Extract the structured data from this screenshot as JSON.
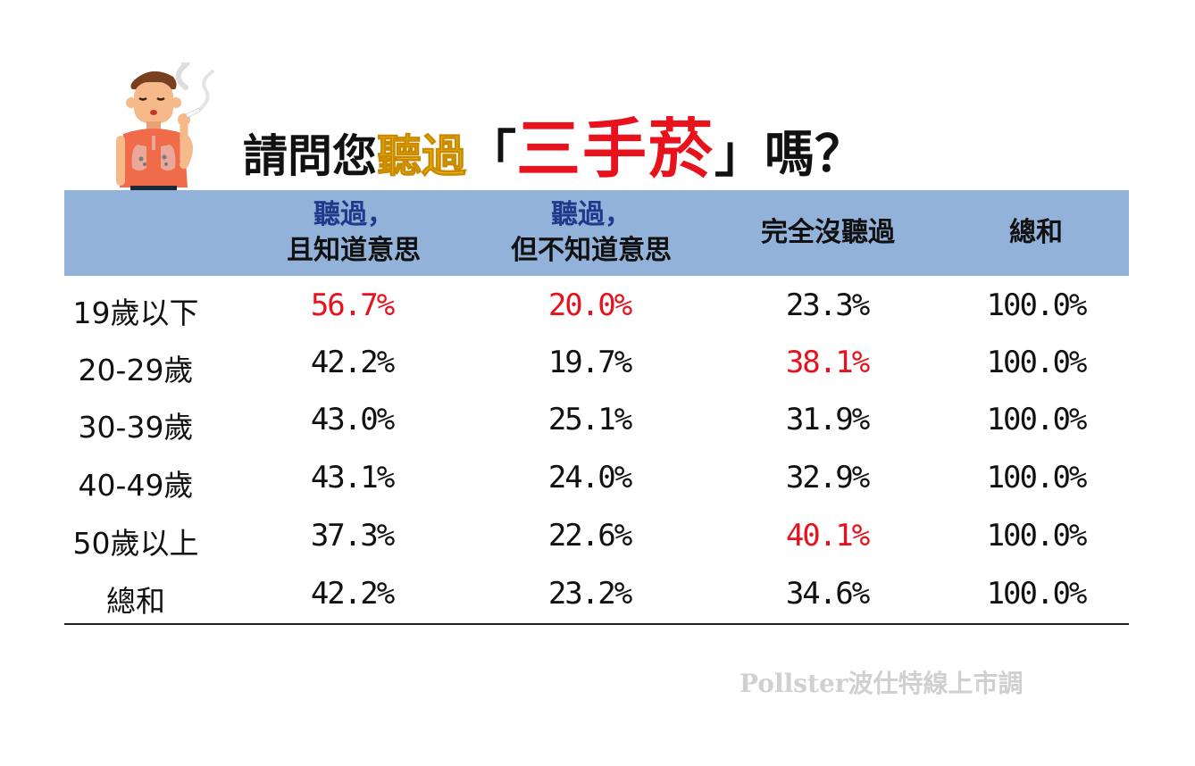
{
  "title": {
    "part1": "請問您",
    "part2": "聽過",
    "part3": "「",
    "part4": "三手菸",
    "part5": "」嗎？"
  },
  "colors": {
    "header_bg": "#93b2d9",
    "highlight_red": "#e8121d",
    "header_blue": "#1f3a8c",
    "title_gold": "#f2b705"
  },
  "chart_data": {
    "type": "table",
    "columns": [
      {
        "line1": "聽過，",
        "line2": "且知道意思"
      },
      {
        "line1": "聽過，",
        "line2": "但不知道意思"
      },
      {
        "line1": "完全沒聽過",
        "line2": ""
      },
      {
        "line1": "總和",
        "line2": ""
      }
    ],
    "rows": [
      {
        "label": "19歲以下",
        "values": [
          "56.7%",
          "20.0%",
          "23.3%",
          "100.0%"
        ],
        "highlight": [
          true,
          true,
          false,
          false
        ]
      },
      {
        "label": "20-29歲",
        "values": [
          "42.2%",
          "19.7%",
          "38.1%",
          "100.0%"
        ],
        "highlight": [
          false,
          false,
          true,
          false
        ]
      },
      {
        "label": "30-39歲",
        "values": [
          "43.0%",
          "25.1%",
          "31.9%",
          "100.0%"
        ],
        "highlight": [
          false,
          false,
          false,
          false
        ]
      },
      {
        "label": "40-49歲",
        "values": [
          "43.1%",
          "24.0%",
          "32.9%",
          "100.0%"
        ],
        "highlight": [
          false,
          false,
          false,
          false
        ]
      },
      {
        "label": "50歲以上",
        "values": [
          "37.3%",
          "22.6%",
          "40.1%",
          "100.0%"
        ],
        "highlight": [
          false,
          false,
          true,
          false
        ]
      },
      {
        "label": "總和",
        "values": [
          "42.2%",
          "23.2%",
          "34.6%",
          "100.0%"
        ],
        "highlight": [
          false,
          false,
          false,
          false
        ]
      }
    ]
  },
  "credit": "Pollster波仕特線上市調"
}
